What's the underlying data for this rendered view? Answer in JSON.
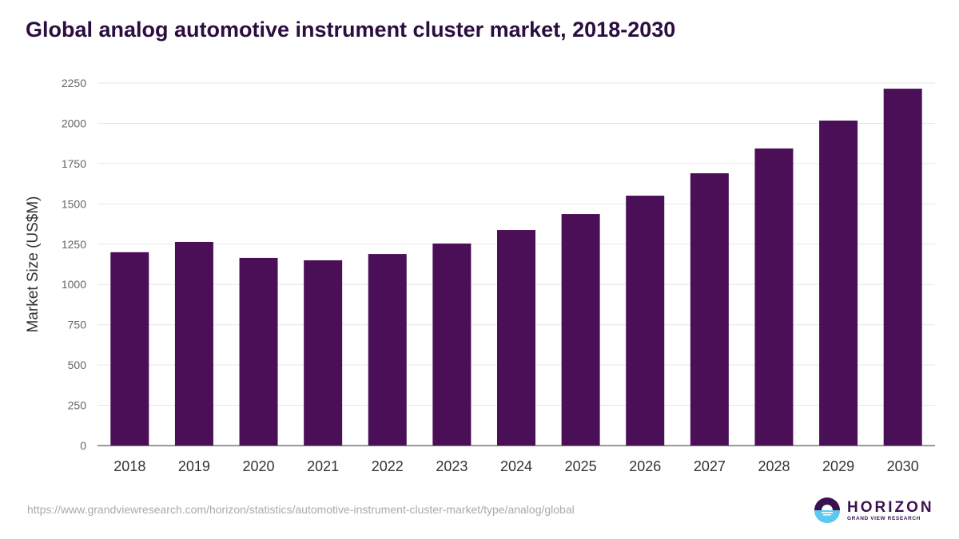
{
  "chart_data": {
    "type": "bar",
    "title": "Global analog automotive instrument cluster market, 2018-2030",
    "xlabel": "",
    "ylabel": "Market Size (US$M)",
    "categories": [
      "2018",
      "2019",
      "2020",
      "2021",
      "2022",
      "2023",
      "2024",
      "2025",
      "2026",
      "2027",
      "2028",
      "2029",
      "2030"
    ],
    "values": [
      1200,
      1264,
      1165,
      1150,
      1189,
      1254,
      1338,
      1437,
      1551,
      1690,
      1844,
      2017,
      2215
    ],
    "ylim": [
      0,
      2250
    ],
    "yticks": [
      0,
      250,
      500,
      750,
      1000,
      1250,
      1500,
      1750,
      2000,
      2250
    ],
    "grid": true,
    "bar_color": "#4b0f58"
  },
  "source": "https://www.grandviewresearch.com/horizon/statistics/automotive-instrument-cluster-market/type/analog/global",
  "logo": {
    "name": "HORIZON",
    "tagline": "GRAND VIEW RESEARCH"
  }
}
